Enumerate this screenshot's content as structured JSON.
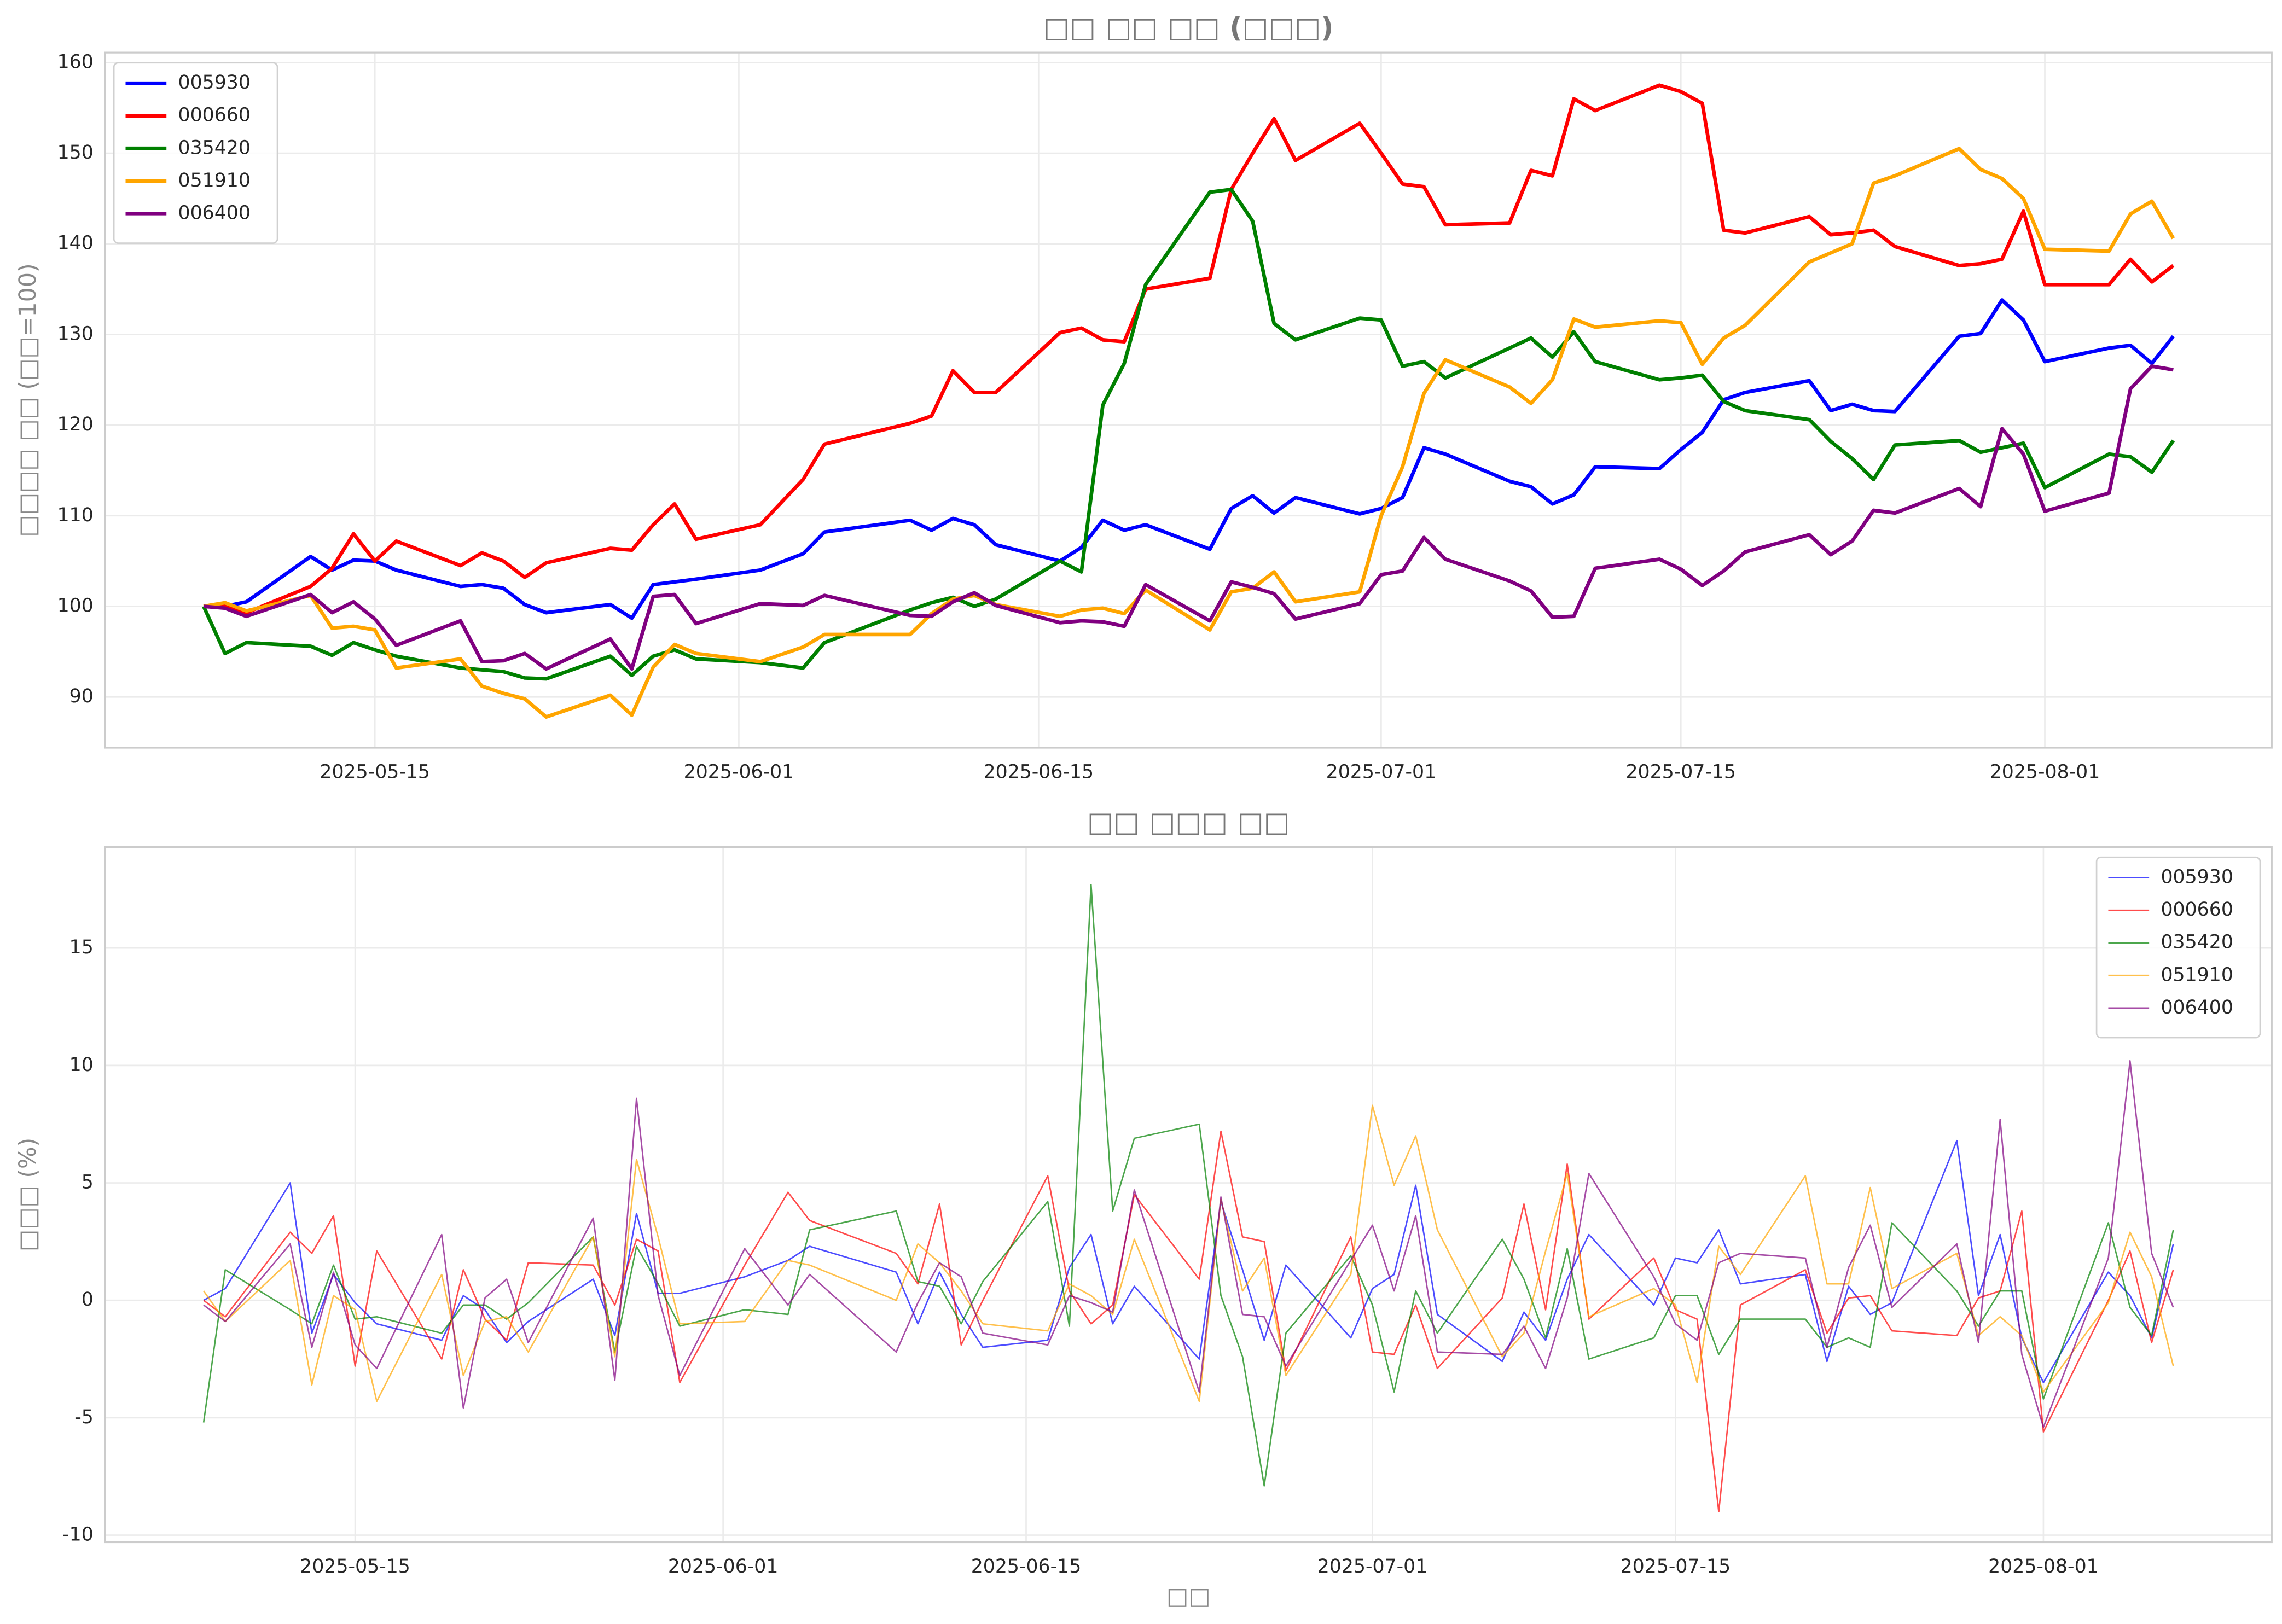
{
  "chart_data": [
    {
      "type": "line",
      "title": "□□ □□ □□ (□□□)",
      "ylabel": "□□□□ □□ (□□=100)",
      "x": [
        "2025-05-07",
        "2025-05-08",
        "2025-05-09",
        "2025-05-12",
        "2025-05-13",
        "2025-05-14",
        "2025-05-15",
        "2025-05-16",
        "2025-05-19",
        "2025-05-20",
        "2025-05-21",
        "2025-05-22",
        "2025-05-23",
        "2025-05-26",
        "2025-05-27",
        "2025-05-28",
        "2025-05-29",
        "2025-05-30",
        "2025-06-02",
        "2025-06-04",
        "2025-06-05",
        "2025-06-09",
        "2025-06-10",
        "2025-06-11",
        "2025-06-12",
        "2025-06-13",
        "2025-06-16",
        "2025-06-17",
        "2025-06-18",
        "2025-06-19",
        "2025-06-20",
        "2025-06-23",
        "2025-06-24",
        "2025-06-25",
        "2025-06-26",
        "2025-06-27",
        "2025-06-30",
        "2025-07-01",
        "2025-07-02",
        "2025-07-03",
        "2025-07-04",
        "2025-07-07",
        "2025-07-08",
        "2025-07-09",
        "2025-07-10",
        "2025-07-11",
        "2025-07-14",
        "2025-07-15",
        "2025-07-16",
        "2025-07-17",
        "2025-07-18",
        "2025-07-21",
        "2025-07-22",
        "2025-07-23",
        "2025-07-24",
        "2025-07-25",
        "2025-07-28",
        "2025-07-29",
        "2025-07-30",
        "2025-07-31",
        "2025-08-01",
        "2025-08-04",
        "2025-08-05",
        "2025-08-06",
        "2025-08-07"
      ],
      "series": [
        {
          "name": "005930",
          "color": "blue",
          "values": [
            100,
            100,
            100.5,
            105.5,
            104,
            105.1,
            105,
            104,
            102.2,
            102.4,
            102,
            100.2,
            99.3,
            100.2,
            98.7,
            102.4,
            102.7,
            103,
            104,
            105.8,
            108.2,
            109.5,
            108.4,
            109.7,
            109,
            106.8,
            105,
            106.5,
            109.5,
            108.4,
            109,
            106.3,
            110.8,
            112.2,
            110.3,
            112,
            110.2,
            110.8,
            112,
            117.5,
            116.8,
            113.8,
            113.2,
            111.3,
            112.3,
            115.4,
            115.2,
            117.3,
            119.2,
            122.8,
            123.6,
            124.9,
            121.6,
            122.3,
            121.6,
            121.5,
            129.8,
            130.1,
            133.8,
            131.6,
            127,
            128.5,
            128.8,
            126.8,
            129.8
          ]
        },
        {
          "name": "000660",
          "color": "red",
          "values": [
            100,
            100,
            99.3,
            102.2,
            104.2,
            108,
            105,
            107.2,
            104.5,
            105.9,
            105,
            103.2,
            104.8,
            106.4,
            106.2,
            109,
            111.3,
            107.4,
            109,
            114,
            117.9,
            120.2,
            121,
            126,
            123.6,
            123.6,
            130.2,
            130.7,
            129.4,
            129.2,
            135,
            136.2,
            146,
            150,
            153.8,
            149.2,
            153.3,
            150,
            146.6,
            146.3,
            142.1,
            142.3,
            148.1,
            147.5,
            156,
            154.7,
            157.5,
            156.8,
            155.5,
            141.5,
            141.2,
            143,
            141,
            141.2,
            141.5,
            139.7,
            137.6,
            137.8,
            138.3,
            143.6,
            135.5,
            135.5,
            138.3,
            135.8,
            137.6
          ]
        },
        {
          "name": "035420",
          "color": "green",
          "values": [
            100,
            94.8,
            96,
            95.6,
            94.6,
            96,
            95.2,
            94.5,
            93.2,
            93,
            92.8,
            92.1,
            92,
            94.5,
            92.4,
            94.5,
            95.2,
            94.2,
            93.8,
            93.2,
            96,
            99.6,
            100.4,
            101,
            100,
            100.8,
            105,
            103.8,
            122.2,
            126.8,
            135.5,
            145.7,
            146,
            142.5,
            131.2,
            129.4,
            131.8,
            131.6,
            126.5,
            127,
            125.2,
            128.5,
            129.6,
            127.5,
            130.3,
            127,
            125,
            125.2,
            125.5,
            122.6,
            121.6,
            120.6,
            118.2,
            116.3,
            114,
            117.8,
            118.3,
            117,
            117.5,
            118,
            113.1,
            116.8,
            116.5,
            114.8,
            118.3
          ]
        },
        {
          "name": "051910",
          "color": "orange",
          "values": [
            100,
            100.4,
            99.5,
            101.2,
            97.6,
            97.8,
            97.4,
            93.2,
            94.2,
            91.2,
            90.4,
            89.8,
            87.8,
            90.2,
            88,
            93.3,
            95.8,
            94.8,
            93.9,
            95.5,
            96.9,
            96.9,
            99.2,
            100.8,
            101.2,
            100.2,
            98.9,
            99.6,
            99.8,
            99.2,
            101.8,
            97.4,
            101.6,
            102,
            103.8,
            100.5,
            101.6,
            110,
            115.4,
            123.5,
            127.2,
            124.2,
            122.4,
            125,
            131.7,
            130.8,
            131.5,
            131.3,
            126.7,
            129.6,
            131,
            138,
            139,
            140,
            146.7,
            147.5,
            150.5,
            148.2,
            147.2,
            145,
            139.4,
            139.2,
            143.3,
            144.7,
            140.6
          ]
        },
        {
          "name": "006400",
          "color": "purple",
          "values": [
            100,
            99.8,
            98.9,
            101.3,
            99.3,
            100.5,
            98.6,
            95.7,
            98.4,
            93.9,
            94,
            94.8,
            93.1,
            96.4,
            93.1,
            101.1,
            101.3,
            98.1,
            100.3,
            100.1,
            101.2,
            99,
            98.9,
            100.5,
            101.5,
            100.1,
            98.2,
            98.4,
            98.3,
            97.8,
            102.4,
            98.4,
            102.7,
            102.1,
            101.4,
            98.6,
            100.3,
            103.5,
            103.9,
            107.6,
            105.2,
            102.8,
            101.7,
            98.8,
            98.9,
            104.2,
            105.2,
            104.1,
            102.3,
            103.9,
            106,
            107.9,
            105.7,
            107.2,
            110.6,
            110.3,
            113,
            111,
            119.6,
            116.8,
            110.5,
            112.5,
            124,
            126.5,
            126.1
          ]
        }
      ],
      "ylim": [
        84.4,
        161.1
      ],
      "yticks": [
        90,
        100,
        110,
        120,
        130,
        140,
        150,
        160
      ],
      "xticks": [
        "2025-05-15",
        "2025-06-01",
        "2025-06-15",
        "2025-07-01",
        "2025-07-15",
        "2025-08-01"
      ],
      "grid": true,
      "legend": "upper left",
      "line_width": 2.5,
      "opacity": 1
    },
    {
      "type": "line",
      "title": "□□ □□□ □□",
      "ylabel": "□□□ (%)",
      "xlabel": "□□",
      "x": [
        "2025-05-08",
        "2025-05-09",
        "2025-05-12",
        "2025-05-13",
        "2025-05-14",
        "2025-05-15",
        "2025-05-16",
        "2025-05-19",
        "2025-05-20",
        "2025-05-21",
        "2025-05-22",
        "2025-05-23",
        "2025-05-26",
        "2025-05-27",
        "2025-05-28",
        "2025-05-29",
        "2025-05-30",
        "2025-06-02",
        "2025-06-04",
        "2025-06-05",
        "2025-06-09",
        "2025-06-10",
        "2025-06-11",
        "2025-06-12",
        "2025-06-13",
        "2025-06-16",
        "2025-06-17",
        "2025-06-18",
        "2025-06-19",
        "2025-06-20",
        "2025-06-23",
        "2025-06-24",
        "2025-06-25",
        "2025-06-26",
        "2025-06-27",
        "2025-06-30",
        "2025-07-01",
        "2025-07-02",
        "2025-07-03",
        "2025-07-04",
        "2025-07-07",
        "2025-07-08",
        "2025-07-09",
        "2025-07-10",
        "2025-07-11",
        "2025-07-14",
        "2025-07-15",
        "2025-07-16",
        "2025-07-17",
        "2025-07-18",
        "2025-07-21",
        "2025-07-22",
        "2025-07-23",
        "2025-07-24",
        "2025-07-25",
        "2025-07-28",
        "2025-07-29",
        "2025-07-30",
        "2025-07-31",
        "2025-08-01",
        "2025-08-04",
        "2025-08-05",
        "2025-08-06",
        "2025-08-07"
      ],
      "series": [
        {
          "name": "005930",
          "color": "blue",
          "values": [
            0,
            0.5,
            5.0,
            -1.4,
            1.1,
            -0.1,
            -1.0,
            -1.7,
            0.2,
            -0.4,
            -1.8,
            -0.9,
            0.9,
            -1.5,
            3.7,
            0.3,
            0.3,
            1.0,
            1.7,
            2.3,
            1.2,
            -1.0,
            1.2,
            -0.6,
            -2.0,
            -1.7,
            1.4,
            2.8,
            -1.0,
            0.6,
            -2.5,
            4.2,
            1.3,
            -1.7,
            1.5,
            -1.6,
            0.5,
            1.1,
            4.9,
            -0.6,
            -2.6,
            -0.5,
            -1.7,
            0.9,
            2.8,
            -0.2,
            1.8,
            1.6,
            3.0,
            0.7,
            1.1,
            -2.6,
            0.6,
            -0.6,
            -0.1,
            6.8,
            0.2,
            2.8,
            -1.6,
            -3.5,
            1.2,
            0.2,
            -1.6,
            2.4
          ]
        },
        {
          "name": "000660",
          "color": "red",
          "values": [
            0,
            -0.7,
            2.9,
            2.0,
            3.6,
            -2.8,
            2.1,
            -2.5,
            1.3,
            -0.8,
            -1.7,
            1.6,
            1.5,
            -0.2,
            2.6,
            2.1,
            -3.5,
            1.5,
            4.6,
            3.4,
            2.0,
            0.7,
            4.1,
            -1.9,
            0,
            5.3,
            0.4,
            -1.0,
            -0.2,
            4.5,
            0.9,
            7.2,
            2.7,
            2.5,
            -3.0,
            2.7,
            -2.2,
            -2.3,
            -0.2,
            -2.9,
            0.1,
            4.1,
            -0.4,
            5.8,
            -0.8,
            1.8,
            -0.4,
            -0.8,
            -9.0,
            -0.2,
            1.3,
            -1.4,
            0.1,
            0.2,
            -1.3,
            -1.5,
            0.1,
            0.4,
            3.8,
            -5.6,
            0,
            2.1,
            -1.8,
            1.3
          ]
        },
        {
          "name": "035420",
          "color": "green",
          "values": [
            -5.2,
            1.3,
            -0.4,
            -1.0,
            1.5,
            -0.8,
            -0.7,
            -1.4,
            -0.2,
            -0.2,
            -0.8,
            -0.1,
            2.7,
            -2.2,
            2.3,
            0.7,
            -1.1,
            -0.4,
            -0.6,
            3.0,
            3.8,
            0.8,
            0.6,
            -1.0,
            0.8,
            4.2,
            -1.1,
            17.7,
            3.8,
            6.9,
            7.5,
            0.2,
            -2.4,
            -7.9,
            -1.4,
            1.9,
            -0.2,
            -3.9,
            0.4,
            -1.4,
            2.6,
            0.9,
            -1.6,
            2.2,
            -2.5,
            -1.6,
            0.2,
            0.2,
            -2.3,
            -0.8,
            -0.8,
            -2.0,
            -1.6,
            -2.0,
            3.3,
            0.4,
            -1.1,
            0.4,
            0.4,
            -4.2,
            3.3,
            -0.3,
            -1.5,
            3.0
          ]
        },
        {
          "name": "051910",
          "color": "orange",
          "values": [
            0.4,
            -0.9,
            1.7,
            -3.6,
            0.2,
            -0.4,
            -4.3,
            1.1,
            -3.2,
            -0.9,
            -0.7,
            -2.2,
            2.7,
            -2.4,
            6.0,
            2.7,
            -1.0,
            -0.9,
            1.7,
            1.5,
            0,
            2.4,
            1.6,
            0.4,
            -1.0,
            -1.3,
            0.7,
            0.2,
            -0.6,
            2.6,
            -4.3,
            4.3,
            0.4,
            1.8,
            -3.2,
            1.1,
            8.3,
            4.9,
            7.0,
            3.0,
            -2.4,
            -1.4,
            2.1,
            5.4,
            -0.7,
            0.5,
            -0.2,
            -3.5,
            2.3,
            1.1,
            5.3,
            0.7,
            0.7,
            4.8,
            0.5,
            2.0,
            -1.5,
            -0.7,
            -1.5,
            -3.9,
            -0.1,
            2.9,
            1.0,
            -2.8
          ]
        },
        {
          "name": "006400",
          "color": "purple",
          "values": [
            -0.2,
            -0.9,
            2.4,
            -2.0,
            1.2,
            -1.9,
            -2.9,
            2.8,
            -4.6,
            0.1,
            0.9,
            -1.8,
            3.5,
            -3.4,
            8.6,
            0.2,
            -3.2,
            2.2,
            -0.2,
            1.1,
            -2.2,
            -0.1,
            1.6,
            1.0,
            -1.4,
            -1.9,
            0.2,
            -0.1,
            -0.5,
            4.7,
            -3.9,
            4.4,
            -0.6,
            -0.7,
            -2.8,
            1.7,
            3.2,
            0.4,
            3.6,
            -2.2,
            -2.3,
            -1.1,
            -2.9,
            0.1,
            5.4,
            1.0,
            -1.0,
            -1.7,
            1.6,
            2.0,
            1.8,
            -2.0,
            1.4,
            3.2,
            -0.3,
            2.4,
            -1.8,
            7.7,
            -2.3,
            -5.4,
            1.8,
            10.2,
            2.0,
            -0.3
          ]
        }
      ],
      "ylim": [
        -10.3,
        19.3
      ],
      "yticks": [
        -10,
        -5,
        0,
        5,
        10,
        15
      ],
      "xticks": [
        "2025-05-15",
        "2025-06-01",
        "2025-06-15",
        "2025-07-01",
        "2025-07-15",
        "2025-08-01"
      ],
      "grid": true,
      "legend": "upper right",
      "line_width": 1,
      "opacity": 0.7
    }
  ]
}
